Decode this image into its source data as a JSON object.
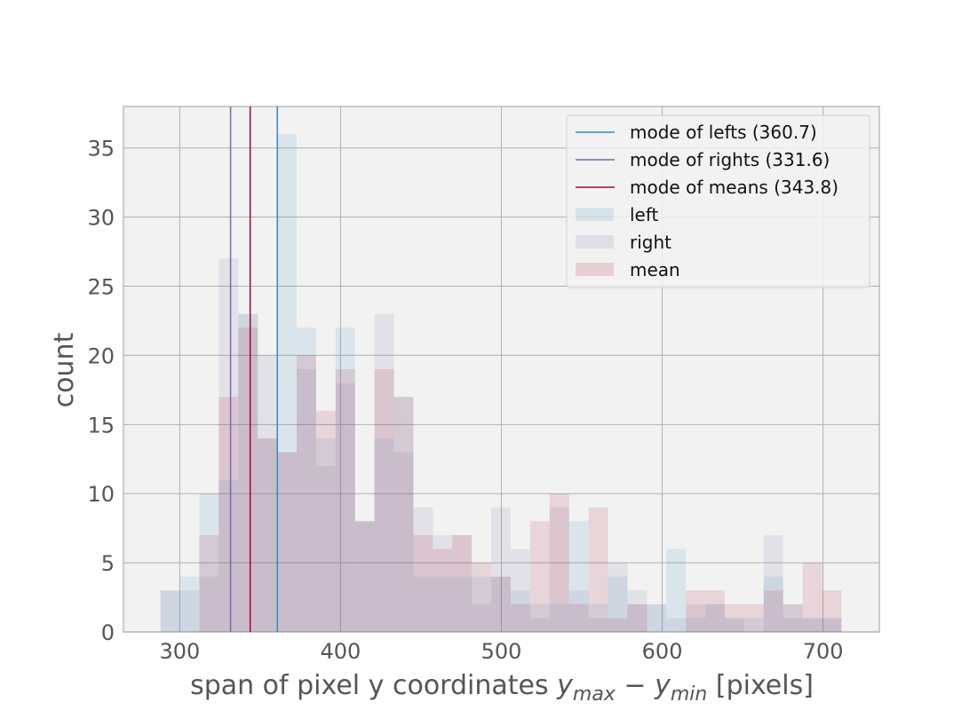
{
  "chart_data": {
    "type": "bar",
    "subtype": "overlaid-histogram",
    "xlabel_prefix": "span of pixel y coordinates ",
    "xlabel_math": {
      "a": "y",
      "a_sub": "max",
      "op": " − ",
      "b": "y",
      "b_sub": "min"
    },
    "xlabel_suffix": " [pixels]",
    "ylabel": "count",
    "xlim": [
      265,
      735
    ],
    "ylim": [
      0,
      38
    ],
    "xticks": [
      300,
      400,
      500,
      600,
      700
    ],
    "yticks": [
      0,
      5,
      10,
      15,
      20,
      25,
      30,
      35
    ],
    "grid": true,
    "legend_position": "upper right",
    "bin_width": 12.1,
    "series": [
      {
        "name": "left",
        "color": "#348ABD",
        "alpha": 0.12,
        "bins": [
          [
            288,
            3
          ],
          [
            300.1,
            4
          ],
          [
            312.2,
            10
          ],
          [
            324.3,
            11
          ],
          [
            336.4,
            23
          ],
          [
            348.5,
            14
          ],
          [
            360.6,
            36
          ],
          [
            372.7,
            22
          ],
          [
            384.8,
            14
          ],
          [
            396.9,
            22
          ],
          [
            409,
            8
          ],
          [
            421.1,
            14
          ],
          [
            433.2,
            17
          ],
          [
            445.3,
            4
          ],
          [
            457.4,
            4
          ],
          [
            469.5,
            4
          ],
          [
            481.6,
            4
          ],
          [
            493.7,
            4
          ],
          [
            505.8,
            3
          ],
          [
            517.9,
            2
          ],
          [
            530,
            2
          ],
          [
            542.1,
            8
          ],
          [
            554.2,
            2
          ],
          [
            566.3,
            4
          ],
          [
            578.4,
            2
          ],
          [
            590.5,
            2
          ],
          [
            602.6,
            6
          ],
          [
            614.7,
            1
          ],
          [
            626.8,
            2
          ],
          [
            638.9,
            1
          ],
          [
            651,
            1
          ],
          [
            663.1,
            4
          ],
          [
            675.2,
            2
          ],
          [
            687.3,
            1
          ],
          [
            699.4,
            1
          ]
        ]
      },
      {
        "name": "right",
        "color": "#7A68A6",
        "alpha": 0.12,
        "bins": [
          [
            288,
            3
          ],
          [
            300.1,
            3
          ],
          [
            312.2,
            4
          ],
          [
            324.3,
            27
          ],
          [
            336.4,
            23
          ],
          [
            348.5,
            20
          ],
          [
            360.6,
            13
          ],
          [
            372.7,
            19
          ],
          [
            384.8,
            12
          ],
          [
            396.9,
            18
          ],
          [
            409,
            8
          ],
          [
            421.1,
            23
          ],
          [
            433.2,
            13
          ],
          [
            445.3,
            9
          ],
          [
            457.4,
            7
          ],
          [
            469.5,
            7
          ],
          [
            481.6,
            2
          ],
          [
            493.7,
            9
          ],
          [
            505.8,
            6
          ],
          [
            517.9,
            1
          ],
          [
            530,
            9
          ],
          [
            542.1,
            3
          ],
          [
            554.2,
            1
          ],
          [
            566.3,
            5
          ],
          [
            578.4,
            3
          ],
          [
            590.5,
            2
          ],
          [
            602.6,
            1
          ],
          [
            614.7,
            2
          ],
          [
            626.8,
            2
          ],
          [
            638.9,
            1
          ],
          [
            651,
            0
          ],
          [
            663.1,
            7
          ],
          [
            675.2,
            1
          ],
          [
            687.3,
            1
          ],
          [
            699.4,
            1
          ]
        ]
      },
      {
        "name": "mean",
        "color": "#A60628",
        "alpha": 0.12,
        "bins": [
          [
            288,
            0
          ],
          [
            300.1,
            0
          ],
          [
            312.2,
            7
          ],
          [
            324.3,
            17
          ],
          [
            336.4,
            22
          ],
          [
            348.5,
            14
          ],
          [
            360.6,
            13
          ],
          [
            372.7,
            20
          ],
          [
            384.8,
            16
          ],
          [
            396.9,
            19
          ],
          [
            409,
            8
          ],
          [
            421.1,
            19
          ],
          [
            433.2,
            17
          ],
          [
            445.3,
            7
          ],
          [
            457.4,
            6
          ],
          [
            469.5,
            7
          ],
          [
            481.6,
            5
          ],
          [
            493.7,
            4
          ],
          [
            505.8,
            2
          ],
          [
            517.9,
            8
          ],
          [
            530,
            10
          ],
          [
            542.1,
            2
          ],
          [
            554.2,
            9
          ],
          [
            566.3,
            1
          ],
          [
            578.4,
            2
          ],
          [
            590.5,
            0
          ],
          [
            602.6,
            0
          ],
          [
            614.7,
            3
          ],
          [
            626.8,
            3
          ],
          [
            638.9,
            2
          ],
          [
            651,
            2
          ],
          [
            663.1,
            3
          ],
          [
            675.2,
            2
          ],
          [
            687.3,
            5
          ],
          [
            699.4,
            3
          ]
        ]
      }
    ],
    "vlines": [
      {
        "label": "mode of lefts (360.7)",
        "x": 360.7,
        "color": "#348ABD"
      },
      {
        "label": "mode of rights (331.6)",
        "x": 331.6,
        "color": "#7A68A6"
      },
      {
        "label": "mode of means (343.8)",
        "x": 343.8,
        "color": "#A60628"
      }
    ]
  }
}
